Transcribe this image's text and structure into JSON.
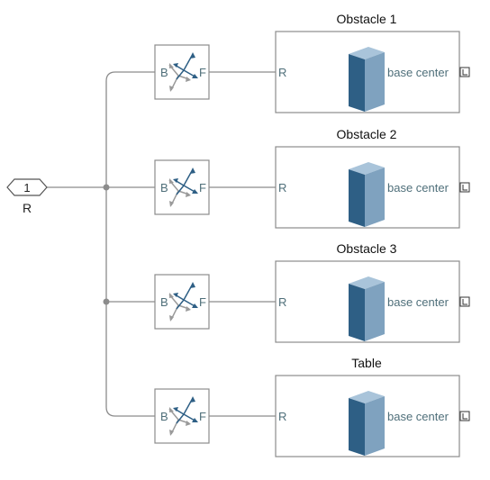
{
  "inport": {
    "number": "1",
    "label": "R"
  },
  "transform": {
    "base_label": "B",
    "follower_label": "F"
  },
  "solids": [
    {
      "title": "Obstacle 1",
      "port_label": "R",
      "output_label": "base center"
    },
    {
      "title": "Obstacle 2",
      "port_label": "R",
      "output_label": "base center"
    },
    {
      "title": "Obstacle 3",
      "port_label": "R",
      "output_label": "base center"
    },
    {
      "title": "Table",
      "port_label": "R",
      "output_label": "base center"
    }
  ],
  "colors": {
    "line": "#8c8c8c",
    "block_border": "#8c8c8c",
    "text": "#4f6f7a",
    "cube_front": "#2e5f85",
    "cube_side": "#7fa2bf",
    "cube_top": "#a9c4da",
    "triad_dark": "#2e5f85",
    "triad_light": "#9a9a9a"
  }
}
